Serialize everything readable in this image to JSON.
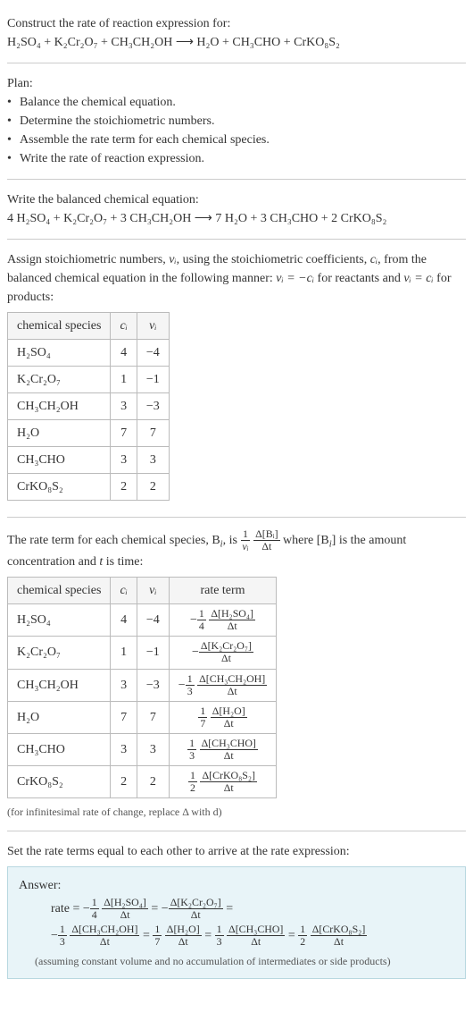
{
  "intro": {
    "title": "Construct the rate of reaction expression for:",
    "equation_lhs": "H₂SO₄ + K₂Cr₂O₇ + CH₃CH₂OH",
    "arrow": " ⟶ ",
    "equation_rhs": "H₂O + CH₃CHO + CrKO₈S₂"
  },
  "plan": {
    "heading": "Plan:",
    "items": [
      "Balance the chemical equation.",
      "Determine the stoichiometric numbers.",
      "Assemble the rate term for each chemical species.",
      "Write the rate of reaction expression."
    ]
  },
  "balanced": {
    "heading": "Write the balanced chemical equation:",
    "equation": "4 H₂SO₄ + K₂Cr₂O₇ + 3 CH₃CH₂OH  ⟶  7 H₂O + 3 CH₃CHO + 2 CrKO₈S₂"
  },
  "stoich": {
    "text1": "Assign stoichiometric numbers, ",
    "nu_i": "νᵢ",
    "text2": ", using the stoichiometric coefficients, ",
    "c_i": "cᵢ",
    "text3": ", from the balanced chemical equation in the following manner: ",
    "rel1": "νᵢ = −cᵢ",
    "text4": " for reactants and ",
    "rel2": "νᵢ = cᵢ",
    "text5": " for products:"
  },
  "table1": {
    "headers": [
      "chemical species",
      "cᵢ",
      "νᵢ"
    ],
    "rows": [
      [
        "H₂SO₄",
        "4",
        "−4"
      ],
      [
        "K₂Cr₂O₇",
        "1",
        "−1"
      ],
      [
        "CH₃CH₂OH",
        "3",
        "−3"
      ],
      [
        "H₂O",
        "7",
        "7"
      ],
      [
        "CH₃CHO",
        "3",
        "3"
      ],
      [
        "CrKO₈S₂",
        "2",
        "2"
      ]
    ]
  },
  "rateterm": {
    "text1": "The rate term for each chemical species, B",
    "sub_i": "i",
    "text2": ", is ",
    "frac1_num": "1",
    "frac1_den": "νᵢ",
    "frac2_num": "Δ[Bᵢ]",
    "frac2_den": "Δt",
    "text3": " where [B",
    "text4": "] is the amount concentration and ",
    "t": "t",
    "text5": " is time:"
  },
  "table2": {
    "headers": [
      "chemical species",
      "cᵢ",
      "νᵢ",
      "rate term"
    ],
    "rows": [
      {
        "sp": "H₂SO₄",
        "c": "4",
        "nu": "−4",
        "sign": "−",
        "coef_num": "1",
        "coef_den": "4",
        "d_num": "Δ[H₂SO₄]",
        "d_den": "Δt"
      },
      {
        "sp": "K₂Cr₂O₇",
        "c": "1",
        "nu": "−1",
        "sign": "−",
        "coef_num": "",
        "coef_den": "",
        "d_num": "Δ[K₂Cr₂O₇]",
        "d_den": "Δt"
      },
      {
        "sp": "CH₃CH₂OH",
        "c": "3",
        "nu": "−3",
        "sign": "−",
        "coef_num": "1",
        "coef_den": "3",
        "d_num": "Δ[CH₃CH₂OH]",
        "d_den": "Δt"
      },
      {
        "sp": "H₂O",
        "c": "7",
        "nu": "7",
        "sign": "",
        "coef_num": "1",
        "coef_den": "7",
        "d_num": "Δ[H₂O]",
        "d_den": "Δt"
      },
      {
        "sp": "CH₃CHO",
        "c": "3",
        "nu": "3",
        "sign": "",
        "coef_num": "1",
        "coef_den": "3",
        "d_num": "Δ[CH₃CHO]",
        "d_den": "Δt"
      },
      {
        "sp": "CrKO₈S₂",
        "c": "2",
        "nu": "2",
        "sign": "",
        "coef_num": "1",
        "coef_den": "2",
        "d_num": "Δ[CrKO₈S₂]",
        "d_den": "Δt"
      }
    ],
    "caption": "(for infinitesimal rate of change, replace Δ with d)"
  },
  "final": {
    "heading": "Set the rate terms equal to each other to arrive at the rate expression:"
  },
  "answer": {
    "label": "Answer:",
    "rate_label": "rate = ",
    "terms": [
      {
        "sign": "−",
        "cn": "1",
        "cd": "4",
        "dn": "Δ[H₂SO₄]",
        "dd": "Δt"
      },
      {
        "sign": "−",
        "cn": "",
        "cd": "",
        "dn": "Δ[K₂Cr₂O₇]",
        "dd": "Δt"
      },
      {
        "sign": "−",
        "cn": "1",
        "cd": "3",
        "dn": "Δ[CH₃CH₂OH]",
        "dd": "Δt"
      },
      {
        "sign": "",
        "cn": "1",
        "cd": "7",
        "dn": "Δ[H₂O]",
        "dd": "Δt"
      },
      {
        "sign": "",
        "cn": "1",
        "cd": "3",
        "dn": "Δ[CH₃CHO]",
        "dd": "Δt"
      },
      {
        "sign": "",
        "cn": "1",
        "cd": "2",
        "dn": "Δ[CrKO₈S₂]",
        "dd": "Δt"
      }
    ],
    "eq": " = ",
    "note": "(assuming constant volume and no accumulation of intermediates or side products)"
  }
}
